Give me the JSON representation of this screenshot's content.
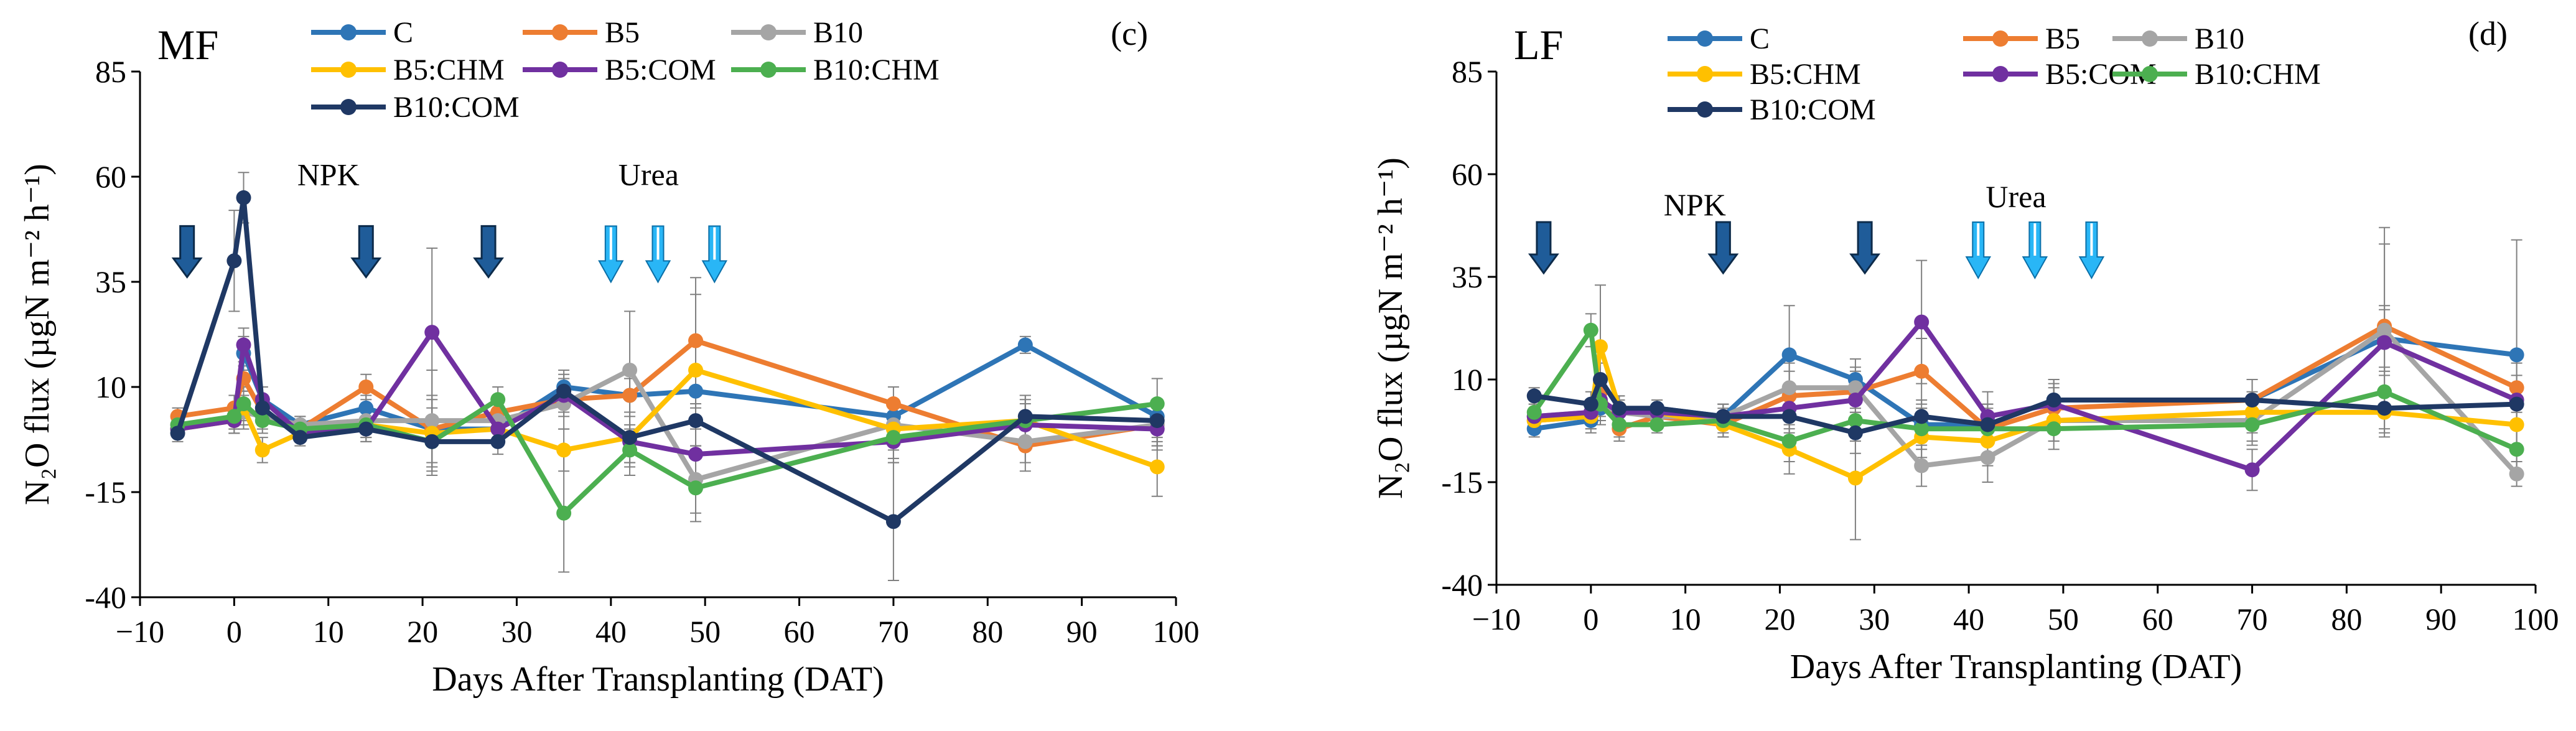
{
  "figure": {
    "panels": [
      "left",
      "right"
    ]
  },
  "chart_data": [
    {
      "type": "line",
      "panel_label": "MF",
      "corner_label": "(c)",
      "xlabel": "Days After Transplanting (DAT)",
      "ylabel": "N₂O flux (µgN m⁻² h⁻¹)",
      "xlim": [
        -10,
        100
      ],
      "ylim": [
        -40,
        85
      ],
      "xticks": [
        -10,
        0,
        10,
        20,
        30,
        40,
        50,
        60,
        70,
        80,
        90,
        100
      ],
      "yticks": [
        -40,
        -15,
        10,
        35,
        60,
        85
      ],
      "annotations": [
        {
          "text": "NPK",
          "x": 10,
          "y": 58
        },
        {
          "text": "Urea",
          "x": 44,
          "y": 58
        }
      ],
      "npk_arrows": [
        -5,
        14,
        27
      ],
      "urea_arrows": [
        40,
        45,
        51
      ],
      "series": [
        {
          "name": "C",
          "color": "#2E75B6",
          "x": [
            -6,
            0,
            1,
            3,
            7,
            14,
            21,
            28,
            35,
            42,
            49,
            70,
            84,
            98
          ],
          "y": [
            0,
            3,
            18,
            7,
            1,
            5,
            0,
            0,
            10,
            8,
            9,
            3,
            20,
            3
          ],
          "err": [
            2,
            3,
            4,
            3,
            2,
            3,
            3,
            3,
            3,
            4,
            4,
            3,
            2,
            3
          ]
        },
        {
          "name": "B5",
          "color": "#ED7D31",
          "x": [
            -6,
            0,
            1,
            3,
            7,
            14,
            21,
            28,
            35,
            42,
            49,
            70,
            84,
            98
          ],
          "y": [
            3,
            5,
            12,
            4,
            0,
            10,
            0,
            4,
            7,
            8,
            21,
            6,
            -4,
            1
          ],
          "err": [
            2,
            3,
            3,
            3,
            2,
            3,
            8,
            3,
            4,
            4,
            15,
            4,
            6,
            5
          ]
        },
        {
          "name": "B10",
          "color": "#A5A5A5",
          "x": [
            -6,
            0,
            1,
            3,
            7,
            14,
            21,
            28,
            35,
            42,
            49,
            70,
            84,
            98
          ],
          "y": [
            1,
            2,
            4,
            3,
            1,
            2,
            2,
            2,
            6,
            14,
            -12,
            1,
            -3,
            1
          ],
          "err": [
            2,
            3,
            4,
            3,
            2,
            3,
            12,
            3,
            6,
            14,
            8,
            4,
            5,
            5
          ]
        },
        {
          "name": "B5:CHM",
          "color": "#FFC000",
          "x": [
            -6,
            0,
            1,
            3,
            7,
            14,
            21,
            28,
            35,
            42,
            49,
            70,
            84,
            98
          ],
          "y": [
            0,
            2,
            5,
            -5,
            -1,
            1,
            -1,
            0,
            -5,
            -2,
            14,
            0,
            2,
            -9
          ],
          "err": [
            2,
            3,
            4,
            3,
            2,
            3,
            8,
            3,
            5,
            6,
            18,
            5,
            6,
            7
          ]
        },
        {
          "name": "B5:COM",
          "color": "#7030A0",
          "x": [
            -6,
            0,
            1,
            3,
            7,
            14,
            21,
            28,
            35,
            42,
            49,
            70,
            84,
            98
          ],
          "y": [
            0,
            2,
            20,
            7,
            -1,
            0,
            23,
            0,
            8,
            -3,
            -6,
            -3,
            1,
            0
          ],
          "err": [
            2,
            3,
            4,
            3,
            2,
            3,
            20,
            3,
            4,
            6,
            6,
            5,
            5,
            5
          ]
        },
        {
          "name": "B10:CHM",
          "color": "#4CAF50",
          "x": [
            -6,
            0,
            1,
            3,
            7,
            14,
            21,
            28,
            35,
            42,
            49,
            70,
            84,
            98
          ],
          "y": [
            1,
            3,
            6,
            2,
            0,
            1,
            -3,
            7,
            -20,
            -5,
            -14,
            -2,
            2,
            6
          ],
          "err": [
            2,
            3,
            4,
            3,
            2,
            3,
            8,
            3,
            14,
            6,
            8,
            5,
            5,
            6
          ]
        },
        {
          "name": "B10:COM",
          "color": "#1F3864",
          "x": [
            -6,
            0,
            1,
            3,
            7,
            14,
            21,
            28,
            35,
            42,
            49,
            70,
            84,
            98
          ],
          "y": [
            -1,
            40,
            55,
            5,
            -2,
            0,
            -3,
            -3,
            9,
            -2,
            2,
            -22,
            3,
            2
          ],
          "err": [
            2,
            12,
            6,
            3,
            2,
            3,
            6,
            3,
            5,
            6,
            6,
            14,
            5,
            5
          ]
        }
      ]
    },
    {
      "type": "line",
      "panel_label": "LF",
      "corner_label": "(d)",
      "xlabel": "Days After Transplanting (DAT)",
      "ylabel": "N₂O flux (µgN m⁻² h⁻¹)",
      "xlim": [
        -10,
        100
      ],
      "ylim": [
        -40,
        85
      ],
      "xticks": [
        -10,
        0,
        10,
        20,
        30,
        40,
        50,
        60,
        70,
        80,
        90,
        100
      ],
      "yticks": [
        -40,
        -15,
        10,
        35,
        60,
        85
      ],
      "annotations": [
        {
          "text": "NPK",
          "x": 11,
          "y": 50
        },
        {
          "text": "Urea",
          "x": 45,
          "y": 52
        }
      ],
      "npk_arrows": [
        -5,
        14,
        29
      ],
      "urea_arrows": [
        41,
        47,
        53
      ],
      "series": [
        {
          "name": "C",
          "color": "#2E75B6",
          "x": [
            -6,
            0,
            1,
            3,
            7,
            14,
            21,
            28,
            35,
            42,
            49,
            70,
            84,
            98
          ],
          "y": [
            -2,
            0,
            3,
            2,
            3,
            1,
            16,
            10,
            -1,
            -1,
            5,
            5,
            20,
            16
          ],
          "err": [
            2,
            3,
            4,
            3,
            2,
            3,
            12,
            5,
            4,
            4,
            5,
            5,
            8,
            28
          ]
        },
        {
          "name": "B5",
          "color": "#ED7D31",
          "x": [
            -6,
            0,
            1,
            3,
            7,
            14,
            21,
            28,
            35,
            42,
            49,
            70,
            84,
            98
          ],
          "y": [
            0,
            1,
            7,
            -2,
            1,
            -1,
            6,
            7,
            12,
            -2,
            3,
            5,
            23,
            8
          ],
          "err": [
            2,
            3,
            4,
            3,
            2,
            3,
            6,
            5,
            8,
            6,
            5,
            5,
            20,
            6
          ]
        },
        {
          "name": "B10",
          "color": "#A5A5A5",
          "x": [
            -6,
            0,
            1,
            3,
            7,
            14,
            21,
            28,
            35,
            42,
            49,
            70,
            84,
            98
          ],
          "y": [
            1,
            2,
            4,
            2,
            1,
            1,
            8,
            8,
            -11,
            -9,
            0,
            0,
            22,
            -13
          ],
          "err": [
            2,
            3,
            4,
            3,
            2,
            3,
            6,
            5,
            5,
            6,
            5,
            5,
            25,
            3
          ]
        },
        {
          "name": "B5:CHM",
          "color": "#FFC000",
          "x": [
            -6,
            0,
            1,
            3,
            7,
            14,
            21,
            28,
            35,
            42,
            49,
            70,
            84,
            98
          ],
          "y": [
            0,
            1,
            18,
            3,
            2,
            -1,
            -7,
            -14,
            -4,
            -5,
            0,
            2,
            2,
            -1
          ],
          "err": [
            2,
            3,
            15,
            3,
            2,
            3,
            6,
            15,
            5,
            6,
            5,
            5,
            6,
            5
          ]
        },
        {
          "name": "B5:COM",
          "color": "#7030A0",
          "x": [
            -6,
            0,
            1,
            3,
            7,
            14,
            21,
            28,
            35,
            42,
            49,
            70,
            84,
            98
          ],
          "y": [
            1,
            2,
            5,
            2,
            2,
            1,
            3,
            5,
            24,
            1,
            4,
            -12,
            19,
            5
          ],
          "err": [
            2,
            3,
            4,
            3,
            2,
            3,
            5,
            5,
            15,
            6,
            5,
            5,
            8,
            6
          ]
        },
        {
          "name": "B10:CHM",
          "color": "#4CAF50",
          "x": [
            -6,
            0,
            1,
            3,
            7,
            14,
            21,
            28,
            35,
            42,
            49,
            70,
            84,
            98
          ],
          "y": [
            2,
            22,
            4,
            -1,
            -1,
            0,
            -5,
            0,
            -2,
            -2,
            -2,
            -1,
            7,
            -7
          ],
          "err": [
            2,
            4,
            4,
            3,
            2,
            3,
            5,
            5,
            5,
            6,
            5,
            5,
            6,
            5
          ]
        },
        {
          "name": "B10:COM",
          "color": "#1F3864",
          "x": [
            -6,
            0,
            1,
            3,
            7,
            14,
            21,
            28,
            35,
            42,
            49,
            70,
            84,
            98
          ],
          "y": [
            6,
            4,
            10,
            3,
            3,
            1,
            1,
            -3,
            1,
            -1,
            5,
            5,
            3,
            4
          ],
          "err": [
            2,
            3,
            4,
            3,
            2,
            3,
            4,
            5,
            4,
            5,
            5,
            5,
            5,
            5
          ]
        }
      ]
    }
  ]
}
